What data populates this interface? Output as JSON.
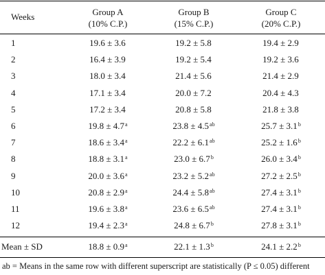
{
  "table": {
    "headers": {
      "weeks": "Weeks",
      "groups": [
        {
          "name": "Group A",
          "sub": "(10% C.P.)"
        },
        {
          "name": "Group B",
          "sub": "(15% C.P.)"
        },
        {
          "name": "Group C",
          "sub": "(20% C.P.)"
        }
      ]
    },
    "rows": [
      {
        "week": "1",
        "a": "19.6 ± 3.6",
        "a_sup": "",
        "b": "19.2 ± 5.8",
        "b_sup": "",
        "c": "19.4 ± 2.9",
        "c_sup": ""
      },
      {
        "week": "2",
        "a": "16.4 ± 3.9",
        "a_sup": "",
        "b": "19.2 ± 5.4",
        "b_sup": "",
        "c": "19.2 ± 3.6",
        "c_sup": ""
      },
      {
        "week": "3",
        "a": "18.0 ± 3.4",
        "a_sup": "",
        "b": "21.4 ± 5.6",
        "b_sup": "",
        "c": "21.4 ± 2.9",
        "c_sup": ""
      },
      {
        "week": "4",
        "a": "17.1 ± 3.4",
        "a_sup": "",
        "b": "20.0 ± 7.2",
        "b_sup": "",
        "c": "20.4 ± 4.3",
        "c_sup": ""
      },
      {
        "week": "5",
        "a": "17.2 ± 3.4",
        "a_sup": "",
        "b": "20.8 ± 5.8",
        "b_sup": "",
        "c": "21.8 ± 3.8",
        "c_sup": ""
      },
      {
        "week": "6",
        "a": "19.8 ± 4.7",
        "a_sup": "a",
        "b": "23.8 ± 4.5",
        "b_sup": "ab",
        "c": "25.7 ± 3.1",
        "c_sup": "b"
      },
      {
        "week": "7",
        "a": "18.6 ± 3.4",
        "a_sup": "a",
        "b": "22.2 ± 6.1",
        "b_sup": "ab",
        "c": "25.2 ± 1.6",
        "c_sup": "b"
      },
      {
        "week": "8",
        "a": "18.8 ± 3.1",
        "a_sup": "a",
        "b": "23.0 ± 6.7",
        "b_sup": "b",
        "c": "26.0 ± 3.4",
        "c_sup": "b"
      },
      {
        "week": "9",
        "a": "20.0 ± 3.6",
        "a_sup": "a",
        "b": "23.2 ± 5.2",
        "b_sup": "ab",
        "c": "27.2 ± 2.5",
        "c_sup": "b"
      },
      {
        "week": "10",
        "a": "20.8 ± 2.9",
        "a_sup": "a",
        "b": "24.4 ± 5.8",
        "b_sup": "ab",
        "c": "27.4 ± 3.1",
        "c_sup": "b"
      },
      {
        "week": "11",
        "a": "19.6 ± 3.8",
        "a_sup": "a",
        "b": "23.6 ± 6.5",
        "b_sup": "ab",
        "c": "27.4 ± 3.1",
        "c_sup": "b"
      },
      {
        "week": "12",
        "a": "19.4 ± 2.3",
        "a_sup": "a",
        "b": "24.8 ± 6.7",
        "b_sup": "b",
        "c": "27.8 ± 3.1",
        "c_sup": "b"
      }
    ],
    "mean_row": {
      "label": "Mean ± SD",
      "a": "18.8 ± 0.9",
      "a_sup": "a",
      "b": "22.1 ± 1.3",
      "b_sup": "b",
      "c": "24.1 ± 2.2",
      "c_sup": "b"
    }
  },
  "footnote": "ab = Means in the same row with different superscript are statistically (P ≤ 0.05) different"
}
